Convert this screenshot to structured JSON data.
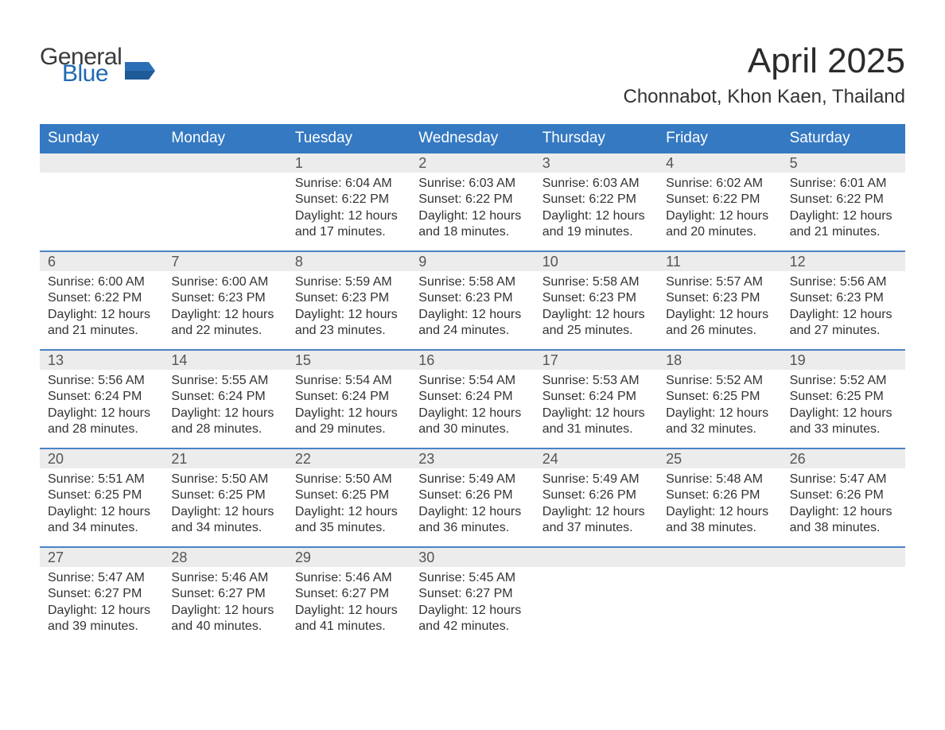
{
  "colors": {
    "header_blue": "#3579c2",
    "accent_blue": "#1f69b3",
    "daynum_bg": "#ececec",
    "row_separator": "#4a84c4",
    "text": "#333333",
    "background": "#ffffff"
  },
  "logo": {
    "word1": "General",
    "word2": "Blue"
  },
  "title": "April 2025",
  "location": "Chonnabot, Khon Kaen, Thailand",
  "days_of_week": [
    "Sunday",
    "Monday",
    "Tuesday",
    "Wednesday",
    "Thursday",
    "Friday",
    "Saturday"
  ],
  "labels": {
    "sunrise": "Sunrise: ",
    "sunset": "Sunset: ",
    "daylight": "Daylight: "
  },
  "calendar": {
    "leading_blanks": 2,
    "days": [
      {
        "n": 1,
        "sunrise": "6:04 AM",
        "sunset": "6:22 PM",
        "daylight": "12 hours and 17 minutes."
      },
      {
        "n": 2,
        "sunrise": "6:03 AM",
        "sunset": "6:22 PM",
        "daylight": "12 hours and 18 minutes."
      },
      {
        "n": 3,
        "sunrise": "6:03 AM",
        "sunset": "6:22 PM",
        "daylight": "12 hours and 19 minutes."
      },
      {
        "n": 4,
        "sunrise": "6:02 AM",
        "sunset": "6:22 PM",
        "daylight": "12 hours and 20 minutes."
      },
      {
        "n": 5,
        "sunrise": "6:01 AM",
        "sunset": "6:22 PM",
        "daylight": "12 hours and 21 minutes."
      },
      {
        "n": 6,
        "sunrise": "6:00 AM",
        "sunset": "6:22 PM",
        "daylight": "12 hours and 21 minutes."
      },
      {
        "n": 7,
        "sunrise": "6:00 AM",
        "sunset": "6:23 PM",
        "daylight": "12 hours and 22 minutes."
      },
      {
        "n": 8,
        "sunrise": "5:59 AM",
        "sunset": "6:23 PM",
        "daylight": "12 hours and 23 minutes."
      },
      {
        "n": 9,
        "sunrise": "5:58 AM",
        "sunset": "6:23 PM",
        "daylight": "12 hours and 24 minutes."
      },
      {
        "n": 10,
        "sunrise": "5:58 AM",
        "sunset": "6:23 PM",
        "daylight": "12 hours and 25 minutes."
      },
      {
        "n": 11,
        "sunrise": "5:57 AM",
        "sunset": "6:23 PM",
        "daylight": "12 hours and 26 minutes."
      },
      {
        "n": 12,
        "sunrise": "5:56 AM",
        "sunset": "6:23 PM",
        "daylight": "12 hours and 27 minutes."
      },
      {
        "n": 13,
        "sunrise": "5:56 AM",
        "sunset": "6:24 PM",
        "daylight": "12 hours and 28 minutes."
      },
      {
        "n": 14,
        "sunrise": "5:55 AM",
        "sunset": "6:24 PM",
        "daylight": "12 hours and 28 minutes."
      },
      {
        "n": 15,
        "sunrise": "5:54 AM",
        "sunset": "6:24 PM",
        "daylight": "12 hours and 29 minutes."
      },
      {
        "n": 16,
        "sunrise": "5:54 AM",
        "sunset": "6:24 PM",
        "daylight": "12 hours and 30 minutes."
      },
      {
        "n": 17,
        "sunrise": "5:53 AM",
        "sunset": "6:24 PM",
        "daylight": "12 hours and 31 minutes."
      },
      {
        "n": 18,
        "sunrise": "5:52 AM",
        "sunset": "6:25 PM",
        "daylight": "12 hours and 32 minutes."
      },
      {
        "n": 19,
        "sunrise": "5:52 AM",
        "sunset": "6:25 PM",
        "daylight": "12 hours and 33 minutes."
      },
      {
        "n": 20,
        "sunrise": "5:51 AM",
        "sunset": "6:25 PM",
        "daylight": "12 hours and 34 minutes."
      },
      {
        "n": 21,
        "sunrise": "5:50 AM",
        "sunset": "6:25 PM",
        "daylight": "12 hours and 34 minutes."
      },
      {
        "n": 22,
        "sunrise": "5:50 AM",
        "sunset": "6:25 PM",
        "daylight": "12 hours and 35 minutes."
      },
      {
        "n": 23,
        "sunrise": "5:49 AM",
        "sunset": "6:26 PM",
        "daylight": "12 hours and 36 minutes."
      },
      {
        "n": 24,
        "sunrise": "5:49 AM",
        "sunset": "6:26 PM",
        "daylight": "12 hours and 37 minutes."
      },
      {
        "n": 25,
        "sunrise": "5:48 AM",
        "sunset": "6:26 PM",
        "daylight": "12 hours and 38 minutes."
      },
      {
        "n": 26,
        "sunrise": "5:47 AM",
        "sunset": "6:26 PM",
        "daylight": "12 hours and 38 minutes."
      },
      {
        "n": 27,
        "sunrise": "5:47 AM",
        "sunset": "6:27 PM",
        "daylight": "12 hours and 39 minutes."
      },
      {
        "n": 28,
        "sunrise": "5:46 AM",
        "sunset": "6:27 PM",
        "daylight": "12 hours and 40 minutes."
      },
      {
        "n": 29,
        "sunrise": "5:46 AM",
        "sunset": "6:27 PM",
        "daylight": "12 hours and 41 minutes."
      },
      {
        "n": 30,
        "sunrise": "5:45 AM",
        "sunset": "6:27 PM",
        "daylight": "12 hours and 42 minutes."
      }
    ],
    "trailing_blanks": 3
  }
}
